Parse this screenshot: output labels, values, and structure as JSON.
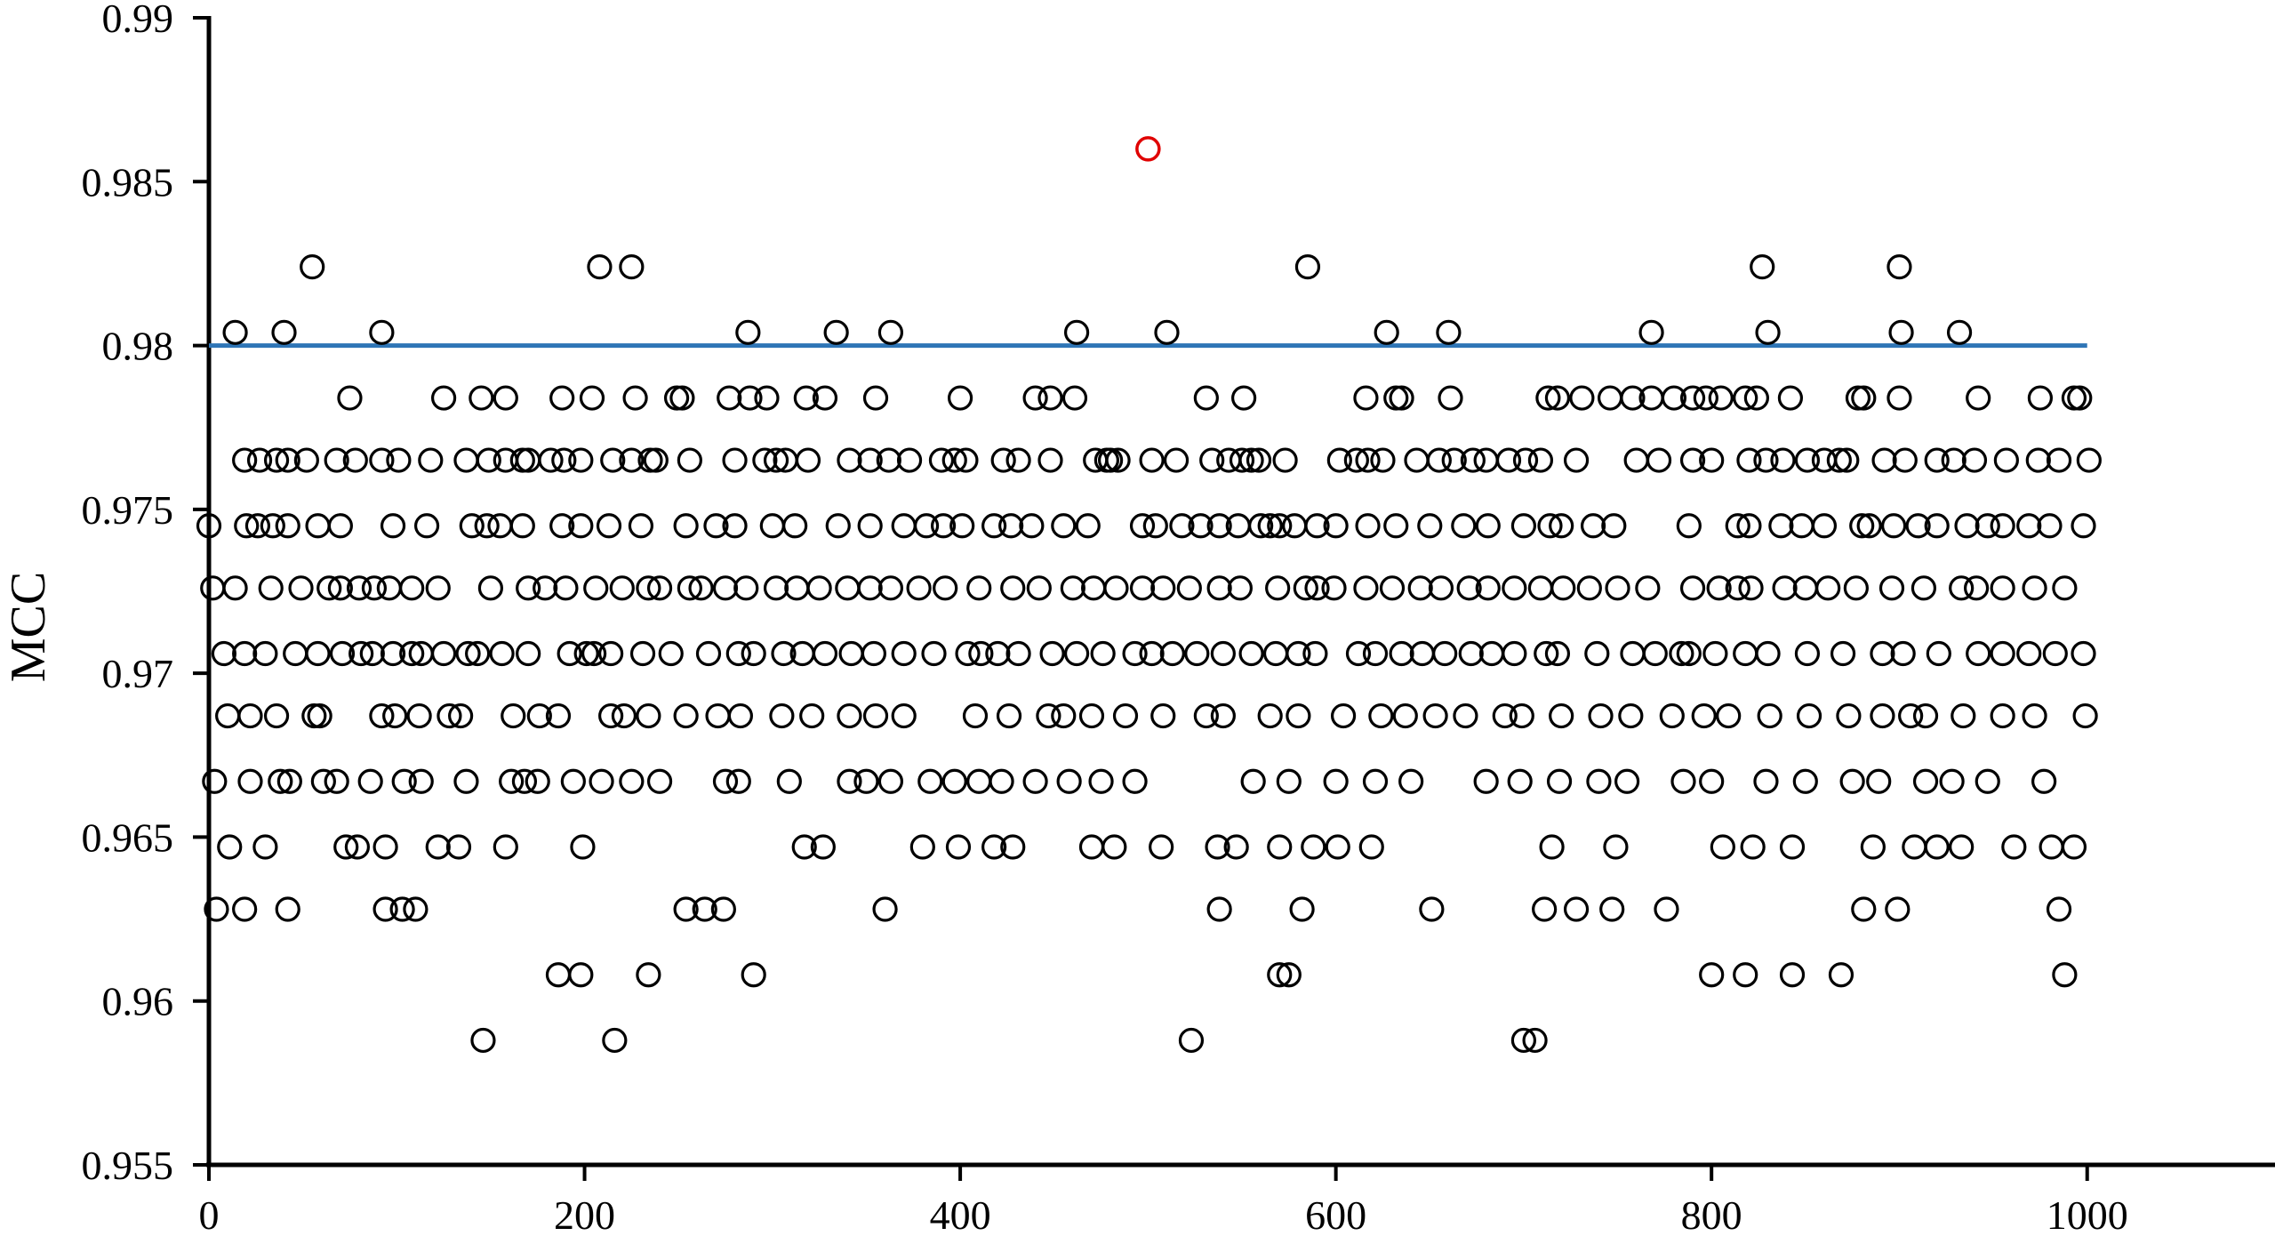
{
  "chart_data": {
    "type": "scatter",
    "title": "",
    "xlabel": "",
    "ylabel": "MCC",
    "xlim": [
      0,
      1100
    ],
    "ylim": [
      0.955,
      0.99
    ],
    "x_ticks": [
      "0",
      "200",
      "400",
      "600",
      "800",
      "1000"
    ],
    "y_ticks": [
      "0.955",
      "0.96",
      "0.965",
      "0.97",
      "0.975",
      "0.98",
      "0.985",
      "0.99"
    ],
    "grid": false,
    "legend": "none",
    "colors": {
      "points": "#000000",
      "highlight": "#e00000",
      "reference_line": "#2e75b6"
    },
    "reference_line": {
      "y": 0.98
    },
    "highlight_point": {
      "x": 500,
      "y": 0.986
    },
    "mcc_levels": [
      0.9588,
      0.9608,
      0.9628,
      0.9647,
      0.9667,
      0.9687,
      0.9706,
      0.9726,
      0.9745,
      0.9765,
      0.9784,
      0.9804,
      0.9824
    ],
    "series": [
      {
        "level": 0.9824,
        "x": [
          55,
          208,
          225,
          585,
          827,
          900
        ]
      },
      {
        "level": 0.9804,
        "x": [
          14,
          40,
          92,
          287,
          334,
          363,
          462,
          510,
          627,
          660,
          768,
          830,
          901,
          932
        ]
      },
      {
        "level": 0.9784,
        "x": [
          75,
          125,
          145,
          158,
          188,
          204,
          227,
          249,
          252,
          277,
          288,
          297,
          318,
          328,
          355,
          400,
          440,
          448,
          461,
          531,
          551,
          616,
          632,
          635,
          661,
          713,
          718,
          731,
          746,
          758,
          768,
          780,
          790,
          797,
          805,
          818,
          824,
          842,
          878,
          881,
          900,
          942,
          975,
          993,
          996
        ]
      },
      {
        "level": 0.9765,
        "x": [
          19,
          27,
          36,
          42,
          52,
          68,
          78,
          92,
          101,
          118,
          137,
          149,
          158,
          167,
          170,
          182,
          189,
          198,
          215,
          225,
          235,
          238,
          256,
          280,
          296,
          302,
          307,
          319,
          341,
          352,
          362,
          373,
          390,
          397,
          403,
          423,
          431,
          448,
          472,
          478,
          480,
          484,
          502,
          515,
          534,
          543,
          550,
          555,
          559,
          573,
          602,
          611,
          617,
          625,
          643,
          655,
          663,
          673,
          680,
          692,
          701,
          709,
          728,
          760,
          772,
          790,
          800,
          820,
          829,
          838,
          851,
          860,
          868,
          872,
          892,
          903,
          920,
          929,
          940,
          957,
          974,
          985,
          1001
        ]
      },
      {
        "level": 0.9745,
        "x": [
          0,
          20,
          26,
          34,
          42,
          58,
          70,
          98,
          116,
          140,
          148,
          155,
          167,
          188,
          198,
          213,
          230,
          254,
          270,
          280,
          300,
          312,
          335,
          352,
          370,
          382,
          391,
          401,
          418,
          427,
          438,
          455,
          468,
          497,
          504,
          518,
          528,
          538,
          548,
          560,
          565,
          570,
          578,
          590,
          600,
          617,
          632,
          650,
          668,
          681,
          700,
          714,
          720,
          737,
          748,
          788,
          814,
          820,
          837,
          848,
          860,
          880,
          884,
          897,
          910,
          920,
          936,
          947,
          955,
          969,
          980,
          998
        ]
      },
      {
        "level": 0.9726,
        "x": [
          2,
          14,
          33,
          49,
          64,
          70,
          80,
          88,
          96,
          108,
          122,
          150,
          170,
          179,
          190,
          206,
          220,
          234,
          240,
          256,
          262,
          275,
          286,
          302,
          313,
          325,
          340,
          352,
          363,
          378,
          392,
          410,
          428,
          442,
          460,
          471,
          483,
          497,
          508,
          522,
          538,
          549,
          569,
          584,
          590,
          599,
          616,
          630,
          645,
          656,
          671,
          681,
          695,
          709,
          721,
          735,
          750,
          766,
          790,
          804,
          814,
          821,
          839,
          850,
          862,
          877,
          896,
          913,
          933,
          941,
          955,
          972,
          988
        ]
      },
      {
        "level": 0.9706,
        "x": [
          8,
          19,
          30,
          46,
          58,
          71,
          81,
          87,
          98,
          108,
          113,
          125,
          138,
          143,
          156,
          170,
          192,
          201,
          205,
          214,
          231,
          246,
          266,
          282,
          290,
          306,
          316,
          328,
          342,
          354,
          370,
          386,
          404,
          411,
          420,
          431,
          449,
          462,
          476,
          493,
          502,
          513,
          526,
          540,
          555,
          568,
          580,
          589,
          612,
          621,
          635,
          646,
          658,
          672,
          683,
          695,
          712,
          718,
          739,
          758,
          770,
          784,
          788,
          802,
          818,
          830,
          851,
          870,
          891,
          902,
          921,
          942,
          955,
          969,
          983,
          998
        ]
      },
      {
        "level": 0.9687,
        "x": [
          10,
          22,
          36,
          56,
          59,
          92,
          99,
          112,
          128,
          134,
          162,
          176,
          186,
          214,
          221,
          234,
          254,
          271,
          283,
          305,
          321,
          341,
          355,
          370,
          408,
          426,
          447,
          455,
          470,
          488,
          508,
          531,
          540,
          565,
          580,
          604,
          624,
          637,
          653,
          669,
          690,
          699,
          720,
          741,
          757,
          779,
          796,
          809,
          831,
          852,
          873,
          891,
          906,
          914,
          934,
          955,
          972,
          999
        ]
      },
      {
        "level": 0.9667,
        "x": [
          3,
          22,
          38,
          43,
          61,
          68,
          86,
          104,
          113,
          137,
          161,
          168,
          175,
          194,
          209,
          225,
          240,
          275,
          282,
          309,
          341,
          350,
          363,
          384,
          397,
          410,
          422,
          440,
          458,
          475,
          493,
          556,
          575,
          600,
          621,
          640,
          680,
          698,
          719,
          740,
          755,
          785,
          800,
          829,
          850,
          875,
          889,
          914,
          928,
          947,
          977
        ]
      },
      {
        "level": 0.9647,
        "x": [
          11,
          30,
          73,
          79,
          94,
          122,
          133,
          158,
          199,
          317,
          327,
          380,
          399,
          418,
          428,
          470,
          482,
          507,
          537,
          547,
          570,
          588,
          601,
          619,
          715,
          749,
          806,
          822,
          843,
          886,
          908,
          920,
          933,
          961,
          981,
          993
        ]
      },
      {
        "level": 0.9628,
        "x": [
          4,
          19,
          42,
          94,
          103,
          110,
          254,
          264,
          274,
          360,
          538,
          582,
          651,
          711,
          728,
          747,
          776,
          881,
          899,
          985
        ]
      },
      {
        "level": 0.9608,
        "x": [
          186,
          198,
          234,
          290,
          570,
          575,
          800,
          818,
          843,
          869,
          988
        ]
      },
      {
        "level": 0.9588,
        "x": [
          146,
          216,
          523,
          700,
          706
        ]
      }
    ]
  }
}
